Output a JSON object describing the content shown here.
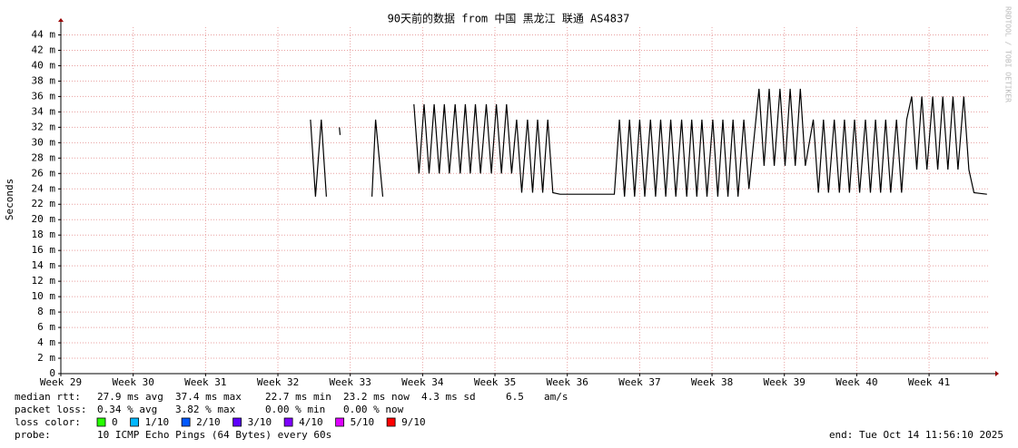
{
  "chart_data": {
    "type": "line",
    "title": "90天前的数据 from 中国 黑龙江 联通 AS4837",
    "y_label": "Seconds",
    "side_label": "RRDTOOL / TOBI OETIKER",
    "xlim": [
      29,
      41.84
    ],
    "xticks": [
      {
        "value": 29,
        "label": "Week 29"
      },
      {
        "value": 30,
        "label": "Week 30"
      },
      {
        "value": 31,
        "label": "Week 31"
      },
      {
        "value": 32,
        "label": "Week 32"
      },
      {
        "value": 33,
        "label": "Week 33"
      },
      {
        "value": 34,
        "label": "Week 34"
      },
      {
        "value": 35,
        "label": "Week 35"
      },
      {
        "value": 36,
        "label": "Week 36"
      },
      {
        "value": 37,
        "label": "Week 37"
      },
      {
        "value": 38,
        "label": "Week 38"
      },
      {
        "value": 39,
        "label": "Week 39"
      },
      {
        "value": 40,
        "label": "Week 40"
      },
      {
        "value": 41,
        "label": "Week 41"
      }
    ],
    "ylim": [
      0,
      0.045
    ],
    "yticks": [
      0,
      {
        "value": 0.002,
        "label": "2 m"
      },
      {
        "value": 0.004,
        "label": "4 m"
      },
      {
        "value": 0.006,
        "label": "6 m"
      },
      {
        "value": 0.008,
        "label": "8 m"
      },
      {
        "value": 0.01,
        "label": "10 m"
      },
      {
        "value": 0.012,
        "label": "12 m"
      },
      {
        "value": 0.014,
        "label": "14 m"
      },
      {
        "value": 0.016,
        "label": "16 m"
      },
      {
        "value": 0.018,
        "label": "18 m"
      },
      {
        "value": 0.02,
        "label": "20 m"
      },
      {
        "value": 0.022,
        "label": "22 m"
      },
      {
        "value": 0.024,
        "label": "24 m"
      },
      {
        "value": 0.026,
        "label": "26 m"
      },
      {
        "value": 0.028,
        "label": "28 m"
      },
      {
        "value": 0.03,
        "label": "30 m"
      },
      {
        "value": 0.032,
        "label": "32 m"
      },
      {
        "value": 0.034,
        "label": "34 m"
      },
      {
        "value": 0.036,
        "label": "36 m"
      },
      {
        "value": 0.038,
        "label": "38 m"
      },
      {
        "value": 0.04,
        "label": "40 m"
      },
      {
        "value": 0.042,
        "label": "42 m"
      },
      {
        "value": 0.044,
        "label": "44 m"
      }
    ],
    "grid": true,
    "series": [
      {
        "color": "#000000",
        "x": [
          32.45,
          32.52,
          32.6,
          32.67,
          32.76,
          32.85,
          32.86,
          33.0,
          33.3,
          33.35,
          33.45,
          33.6,
          33.88,
          33.95,
          34.02,
          34.09,
          34.16,
          34.23,
          34.3,
          34.37,
          34.45,
          34.52,
          34.59,
          34.66,
          34.73,
          34.8,
          34.88,
          34.95,
          35.02,
          35.09,
          35.16,
          35.23,
          35.3,
          35.37,
          35.45,
          35.52,
          35.59,
          35.66,
          35.73,
          35.8,
          35.9,
          36.2,
          36.5,
          36.65,
          36.72,
          36.79,
          36.86,
          36.93,
          37.0,
          37.07,
          37.15,
          37.22,
          37.29,
          37.36,
          37.43,
          37.5,
          37.58,
          37.65,
          37.72,
          37.79,
          37.86,
          37.93,
          38.01,
          38.08,
          38.15,
          38.22,
          38.29,
          38.36,
          38.44,
          38.51,
          38.65,
          38.72,
          38.79,
          38.86,
          38.94,
          39.01,
          39.08,
          39.15,
          39.22,
          39.29,
          39.4,
          39.47,
          39.54,
          39.61,
          39.69,
          39.76,
          39.83,
          39.9,
          39.97,
          40.04,
          40.12,
          40.19,
          40.26,
          40.33,
          40.4,
          40.47,
          40.55,
          40.62,
          40.69,
          40.76,
          40.83,
          40.9,
          40.97,
          41.05,
          41.12,
          41.19,
          41.26,
          41.33,
          41.4,
          41.48,
          41.55,
          41.62,
          41.8
        ],
        "values": [
          0.033,
          0.023,
          0.033,
          0.023,
          null,
          0.032,
          0.031,
          null,
          0.023,
          0.033,
          0.023,
          null,
          0.035,
          0.026,
          0.035,
          0.026,
          0.035,
          0.026,
          0.035,
          0.026,
          0.035,
          0.026,
          0.035,
          0.026,
          0.035,
          0.026,
          0.035,
          0.026,
          0.035,
          0.026,
          0.035,
          0.026,
          0.033,
          0.0235,
          0.033,
          0.0235,
          0.033,
          0.0235,
          0.033,
          0.0235,
          0.0233,
          0.0233,
          0.0233,
          0.0233,
          0.033,
          0.023,
          0.033,
          0.023,
          0.033,
          0.023,
          0.033,
          0.023,
          0.033,
          0.023,
          0.033,
          0.023,
          0.033,
          0.023,
          0.033,
          0.023,
          0.033,
          0.023,
          0.033,
          0.023,
          0.033,
          0.023,
          0.033,
          0.023,
          0.033,
          0.024,
          0.037,
          0.027,
          0.037,
          0.027,
          0.037,
          0.027,
          0.037,
          0.027,
          0.037,
          0.027,
          0.033,
          0.0235,
          0.033,
          0.0235,
          0.033,
          0.0235,
          0.033,
          0.0235,
          0.033,
          0.0235,
          0.033,
          0.0235,
          0.033,
          0.0235,
          0.033,
          0.0235,
          0.033,
          0.0235,
          0.033,
          0.036,
          0.0265,
          0.036,
          0.0265,
          0.036,
          0.0265,
          0.036,
          0.0265,
          0.036,
          0.0265,
          0.036,
          0.0265,
          0.0235,
          0.0233
        ]
      }
    ],
    "stats": [
      [
        "median rtt:",
        "27.9 ms avg",
        "37.4 ms max",
        "22.7 ms min",
        "23.2 ms now",
        "4.3 ms sd",
        "6.5",
        "am/s"
      ],
      [
        "packet loss:",
        "0.34 % avg",
        "3.82 % max",
        "0.00 % min",
        "0.00 % now"
      ]
    ],
    "loss_label": "loss color:",
    "loss_colors": [
      {
        "label": "0",
        "color": "#26ff00"
      },
      {
        "label": "1/10",
        "color": "#00b8ff"
      },
      {
        "label": "2/10",
        "color": "#0059ff"
      },
      {
        "label": "3/10",
        "color": "#5e00ff"
      },
      {
        "label": "4/10",
        "color": "#7e00ff"
      },
      {
        "label": "5/10",
        "color": "#dd00ff"
      },
      {
        "label": "9/10",
        "color": "#ff0000"
      }
    ],
    "probe_label": "probe:",
    "probe": "10 ICMP Echo Pings (64 Bytes) every 60s",
    "end": "end: Tue Oct 14 11:56:10 2025"
  }
}
